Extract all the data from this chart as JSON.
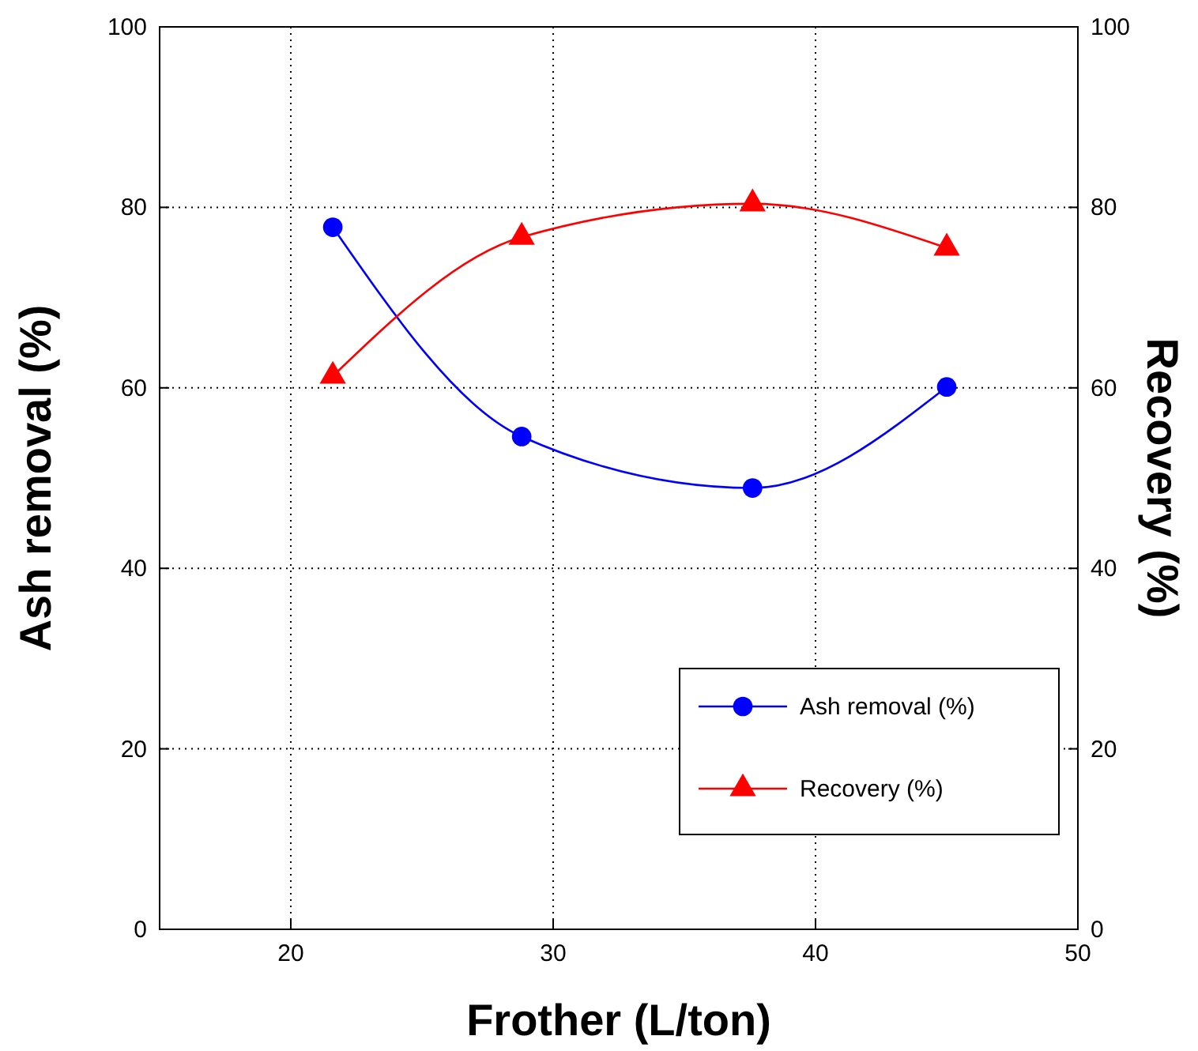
{
  "chart_data": {
    "type": "line",
    "xlabel": "Frother (L/ton)",
    "ylabel": "Ash removal (%)",
    "y2label": "Recovery (%)",
    "x": [
      21.6,
      28.8,
      37.6,
      45
    ],
    "xlim": [
      15,
      50
    ],
    "xticks": [
      20,
      30,
      40,
      50
    ],
    "ylim": [
      0,
      100
    ],
    "yticks": [
      0,
      20,
      40,
      60,
      80,
      100
    ],
    "y2lim": [
      0,
      100
    ],
    "y2ticks": [
      0,
      20,
      40,
      60,
      80,
      100
    ],
    "grid": true,
    "legend": "bottom right",
    "line_style": "solid",
    "series": [
      {
        "name": "Ash removal (%)",
        "color": "#0000ff",
        "marker": "circle",
        "values": [
          77.8,
          54.6,
          48.9,
          60.1
        ]
      },
      {
        "name": "Recovery (%)",
        "color": "#ff0000",
        "marker": "triangle",
        "axis": "y2",
        "values": [
          61.3,
          76.7,
          80.4,
          75.5
        ]
      }
    ]
  }
}
